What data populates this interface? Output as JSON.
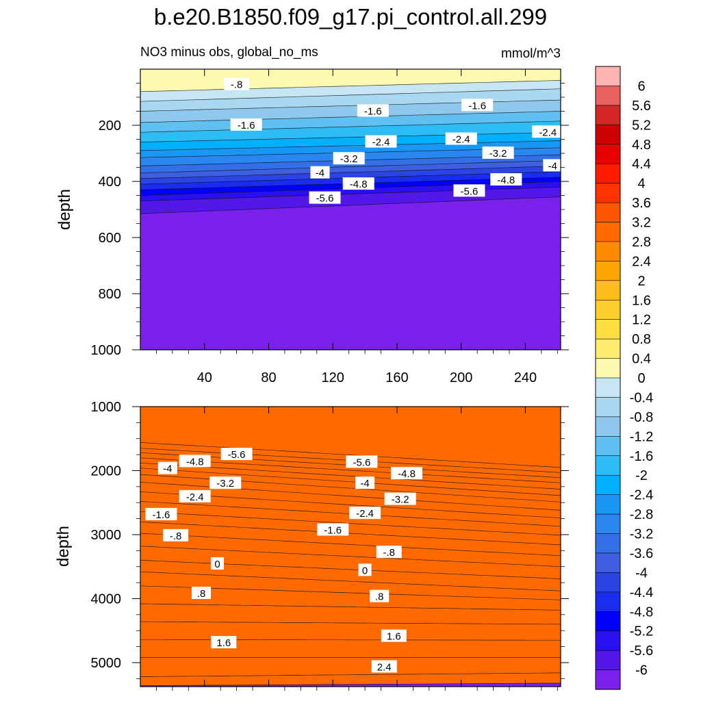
{
  "figure": {
    "title": "b.e20.B1850.f09_g17.pi_control.all.299",
    "subtitle_left": "NO3 minus obs, global_no_ms",
    "subtitle_right": "mmol/m^3"
  },
  "colorbar": {
    "levels": [
      6,
      5.6,
      5.2,
      4.8,
      4.4,
      4,
      3.6,
      3.2,
      2.8,
      2.4,
      2,
      1.6,
      1.2,
      0.8,
      0.4,
      0,
      -0.4,
      -0.8,
      -1.2,
      -1.6,
      -2,
      -2.4,
      -2.8,
      -3.2,
      -3.6,
      -4,
      -4.4,
      -4.8,
      -5.2,
      -5.6,
      -6
    ],
    "level_labels": [
      "6",
      "5.6",
      "5.2",
      "4.8",
      "4.4",
      "4",
      "3.6",
      "3.2",
      "2.8",
      "2.4",
      "2",
      "1.6",
      "1.2",
      "0.8",
      "0.4",
      "0",
      "-0.4",
      "-0.8",
      "-1.2",
      "-1.6",
      "-2",
      "-2.4",
      "-2.8",
      "-3.2",
      "-3.6",
      "-4",
      "-4.4",
      "-4.8",
      "-5.2",
      "-5.6",
      "-6"
    ],
    "colors_top_to_bottom": [
      "#ffb3b3",
      "#e86060",
      "#d42828",
      "#cc0000",
      "#e60000",
      "#ff1a00",
      "#ff3300",
      "#ff5500",
      "#ff6a00",
      "#ff8a00",
      "#ffa500",
      "#ffbd19",
      "#ffcd2e",
      "#ffdc40",
      "#ffec70",
      "#fff8b0",
      "#c6e6f3",
      "#aad8f0",
      "#8ec8ec",
      "#60c0f2",
      "#2fbcf5",
      "#00b0ff",
      "#1a96f5",
      "#2a86f0",
      "#3370e8",
      "#3e60e0",
      "#2a44e6",
      "#1a2cf0",
      "#0000ff",
      "#2a10f0",
      "#5218e8",
      "#7a22ec"
    ]
  },
  "chart_data": [
    {
      "type": "contour",
      "panel": "upper",
      "x_ticks": [
        40,
        80,
        120,
        160,
        200,
        240
      ],
      "xlim": [
        0,
        262
      ],
      "y_ticks": [
        200,
        400,
        600,
        800,
        1000
      ],
      "ylim": [
        0,
        1000
      ],
      "ylabel": "depth",
      "depth_reversed": true,
      "levels": [
        -6,
        -5.6,
        -5.2,
        -4.8,
        -4.4,
        -4,
        -3.6,
        -3.2,
        -2.8,
        -2.4,
        -2,
        -1.6,
        -1.2,
        -0.8,
        -0.4,
        0
      ],
      "contour_depth_at_start": [
        515,
        470,
        450,
        430,
        410,
        390,
        370,
        345,
        315,
        290,
        260,
        225,
        190,
        150,
        115,
        80
      ],
      "contour_depth_at_end": [
        455,
        420,
        400,
        385,
        365,
        345,
        325,
        305,
        280,
        255,
        225,
        185,
        150,
        110,
        70,
        40
      ],
      "contour_labels": [
        {
          "text": "-.8",
          "x": 60,
          "depth": 55
        },
        {
          "text": "-1.6",
          "x": 66,
          "depth": 200
        },
        {
          "text": "-1.6",
          "x": 145,
          "depth": 150
        },
        {
          "text": "-1.6",
          "x": 210,
          "depth": 130
        },
        {
          "text": "-2.4",
          "x": 254,
          "depth": 225
        },
        {
          "text": "-2.4",
          "x": 150,
          "depth": 260
        },
        {
          "text": "-2.4",
          "x": 200,
          "depth": 250
        },
        {
          "text": "-3.2",
          "x": 130,
          "depth": 320
        },
        {
          "text": "-3.2",
          "x": 223,
          "depth": 300
        },
        {
          "text": "-4",
          "x": 112,
          "depth": 370
        },
        {
          "text": "-4",
          "x": 257,
          "depth": 345
        },
        {
          "text": "-4.8",
          "x": 136,
          "depth": 410
        },
        {
          "text": "-4.8",
          "x": 228,
          "depth": 395
        },
        {
          "text": "-5.6",
          "x": 115,
          "depth": 460
        },
        {
          "text": "-5.6",
          "x": 205,
          "depth": 435
        }
      ]
    },
    {
      "type": "contour",
      "panel": "lower",
      "x_ticks": [
        40,
        80,
        120,
        160,
        200,
        240
      ],
      "xlim": [
        0,
        262
      ],
      "y_ticks": [
        1000,
        2000,
        3000,
        4000,
        5000
      ],
      "ylim": [
        1000,
        5375
      ],
      "ylabel": "depth",
      "depth_reversed": true,
      "levels": [
        -6,
        -5.6,
        -5.2,
        -4.8,
        -4.4,
        -4,
        -3.6,
        -3.2,
        -2.8,
        -2.4,
        -2,
        -1.6,
        -1.2,
        -0.8,
        -0.4,
        0,
        0.4,
        0.8,
        1.2,
        1.6,
        2,
        2.4,
        2.8
      ],
      "contour_depth_at_start": [
        1560,
        1650,
        1720,
        1800,
        1880,
        1960,
        2060,
        2180,
        2330,
        2480,
        2640,
        2800,
        2980,
        3180,
        3400,
        3580,
        3800,
        4080,
        4360,
        4640,
        4920,
        5220,
        5360
      ],
      "contour_depth_at_end": [
        1950,
        2030,
        2110,
        2190,
        2290,
        2390,
        2490,
        2620,
        2740,
        2870,
        3010,
        3160,
        3330,
        3500,
        3690,
        3880,
        4020,
        4180,
        4400,
        4650,
        4920,
        5160,
        5320
      ],
      "contour_labels": [
        {
          "text": "-5.6",
          "x": 60,
          "depth": 1750
        },
        {
          "text": "-5.6",
          "x": 138,
          "depth": 1870
        },
        {
          "text": "-4.8",
          "x": 34,
          "depth": 1860
        },
        {
          "text": "-4.8",
          "x": 166,
          "depth": 2050
        },
        {
          "text": "-4",
          "x": 17,
          "depth": 1970
        },
        {
          "text": "-4",
          "x": 140,
          "depth": 2200
        },
        {
          "text": "-3.2",
          "x": 53,
          "depth": 2200
        },
        {
          "text": "-3.2",
          "x": 162,
          "depth": 2450
        },
        {
          "text": "-2.4",
          "x": 34,
          "depth": 2410
        },
        {
          "text": "-2.4",
          "x": 140,
          "depth": 2670
        },
        {
          "text": "-1.6",
          "x": 13,
          "depth": 2690
        },
        {
          "text": "-1.6",
          "x": 120,
          "depth": 2930
        },
        {
          "text": "-.8",
          "x": 22,
          "depth": 3020
        },
        {
          "text": "-.8",
          "x": 155,
          "depth": 3280
        },
        {
          "text": "0",
          "x": 48,
          "depth": 3460
        },
        {
          "text": "0",
          "x": 140,
          "depth": 3560
        },
        {
          "text": ".8",
          "x": 38,
          "depth": 3920
        },
        {
          "text": ".8",
          "x": 149,
          "depth": 3970
        },
        {
          "text": "1.6",
          "x": 52,
          "depth": 4690
        },
        {
          "text": "1.6",
          "x": 158,
          "depth": 4590
        },
        {
          "text": "2.4",
          "x": 152,
          "depth": 5070
        }
      ]
    }
  ]
}
